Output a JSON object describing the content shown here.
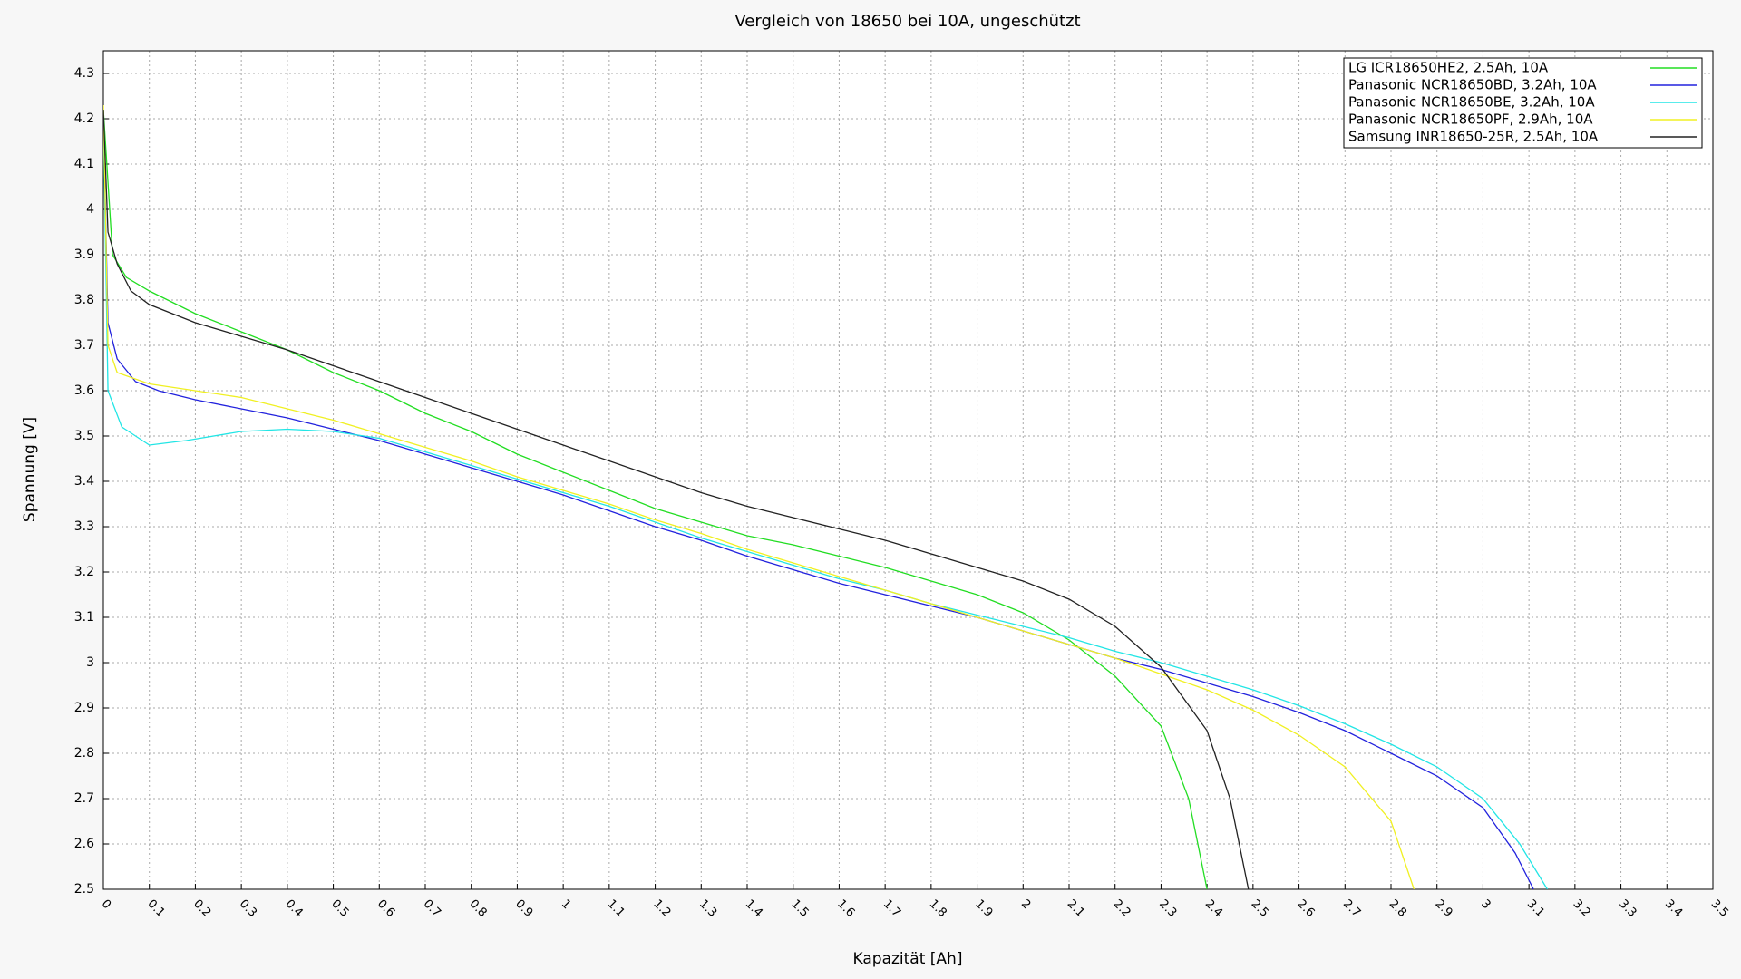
{
  "chart_data": {
    "type": "line",
    "title": "Vergleich von 18650 bei 10A, ungeschützt",
    "xlabel": "Kapazität [Ah]",
    "ylabel": "Spannung [V]",
    "xlim": [
      0,
      3.5
    ],
    "ylim": [
      2.5,
      4.35
    ],
    "xticks": [
      0,
      0.1,
      0.2,
      0.3,
      0.4,
      0.5,
      0.6,
      0.7,
      0.8,
      0.9,
      1,
      1.1,
      1.2,
      1.3,
      1.4,
      1.5,
      1.6,
      1.7,
      1.8,
      1.9,
      2,
      2.1,
      2.2,
      2.3,
      2.4,
      2.5,
      2.6,
      2.7,
      2.8,
      2.9,
      3,
      3.1,
      3.2,
      3.3,
      3.4,
      3.5
    ],
    "yticks": [
      2.5,
      2.6,
      2.7,
      2.8,
      2.9,
      3,
      3.1,
      3.2,
      3.3,
      3.4,
      3.5,
      3.6,
      3.7,
      3.8,
      3.9,
      4,
      4.1,
      4.2,
      4.3
    ],
    "grid": true,
    "legend": "upper right",
    "series": [
      {
        "name": "LG ICR18650HE2, 2.5Ah, 10A",
        "color": "#22dd22",
        "x": [
          0,
          0.02,
          0.05,
          0.1,
          0.2,
          0.3,
          0.4,
          0.5,
          0.6,
          0.7,
          0.8,
          0.9,
          1,
          1.1,
          1.2,
          1.3,
          1.4,
          1.5,
          1.6,
          1.7,
          1.8,
          1.9,
          2,
          2.1,
          2.2,
          2.3,
          2.36,
          2.4
        ],
        "values": [
          4.22,
          3.9,
          3.85,
          3.82,
          3.77,
          3.73,
          3.69,
          3.64,
          3.6,
          3.55,
          3.51,
          3.46,
          3.42,
          3.38,
          3.34,
          3.31,
          3.28,
          3.26,
          3.235,
          3.21,
          3.18,
          3.15,
          3.11,
          3.05,
          2.97,
          2.86,
          2.7,
          2.5
        ]
      },
      {
        "name": "Panasonic NCR18650BD, 3.2Ah, 10A",
        "color": "#2222dd",
        "x": [
          0,
          0.01,
          0.03,
          0.07,
          0.12,
          0.2,
          0.3,
          0.4,
          0.5,
          0.6,
          0.7,
          0.8,
          0.9,
          1,
          1.1,
          1.2,
          1.3,
          1.4,
          1.5,
          1.6,
          1.7,
          1.8,
          1.9,
          2,
          2.1,
          2.2,
          2.3,
          2.4,
          2.5,
          2.6,
          2.7,
          2.8,
          2.9,
          3,
          3.07,
          3.11
        ],
        "values": [
          4.2,
          3.75,
          3.67,
          3.62,
          3.6,
          3.58,
          3.56,
          3.54,
          3.515,
          3.49,
          3.46,
          3.43,
          3.4,
          3.37,
          3.335,
          3.3,
          3.27,
          3.235,
          3.205,
          3.175,
          3.15,
          3.125,
          3.1,
          3.07,
          3.04,
          3.01,
          2.985,
          2.955,
          2.925,
          2.89,
          2.85,
          2.8,
          2.75,
          2.68,
          2.58,
          2.5
        ]
      },
      {
        "name": "Panasonic NCR18650BE, 3.2Ah, 10A",
        "color": "#22e5e5",
        "x": [
          0,
          0.01,
          0.04,
          0.1,
          0.18,
          0.3,
          0.4,
          0.5,
          0.6,
          0.7,
          0.8,
          0.9,
          1,
          1.1,
          1.2,
          1.3,
          1.4,
          1.5,
          1.6,
          1.7,
          1.8,
          1.9,
          2,
          2.1,
          2.2,
          2.3,
          2.4,
          2.5,
          2.6,
          2.7,
          2.8,
          2.9,
          3,
          3.08,
          3.14
        ],
        "values": [
          4.2,
          3.6,
          3.52,
          3.48,
          3.49,
          3.51,
          3.515,
          3.51,
          3.495,
          3.465,
          3.435,
          3.405,
          3.375,
          3.345,
          3.31,
          3.275,
          3.245,
          3.215,
          3.185,
          3.16,
          3.13,
          3.105,
          3.08,
          3.055,
          3.025,
          3,
          2.97,
          2.94,
          2.905,
          2.865,
          2.82,
          2.77,
          2.7,
          2.6,
          2.5
        ]
      },
      {
        "name": "Panasonic NCR18650PF, 2.9Ah, 10A",
        "color": "#f0f022",
        "x": [
          0,
          0.01,
          0.03,
          0.1,
          0.2,
          0.3,
          0.4,
          0.5,
          0.6,
          0.7,
          0.8,
          0.9,
          1,
          1.1,
          1.2,
          1.3,
          1.4,
          1.5,
          1.6,
          1.7,
          1.8,
          1.9,
          2,
          2.1,
          2.2,
          2.3,
          2.4,
          2.5,
          2.6,
          2.7,
          2.8,
          2.85
        ],
        "values": [
          4.23,
          3.7,
          3.64,
          3.615,
          3.6,
          3.585,
          3.56,
          3.535,
          3.505,
          3.475,
          3.445,
          3.41,
          3.38,
          3.35,
          3.315,
          3.285,
          3.25,
          3.22,
          3.19,
          3.16,
          3.13,
          3.1,
          3.07,
          3.04,
          3.01,
          2.975,
          2.94,
          2.895,
          2.84,
          2.77,
          2.65,
          2.5
        ]
      },
      {
        "name": "Samsung INR18650-25R, 2.5Ah, 10A",
        "color": "#222222",
        "x": [
          0,
          0.01,
          0.03,
          0.06,
          0.1,
          0.2,
          0.3,
          0.4,
          0.5,
          0.6,
          0.7,
          0.8,
          0.9,
          1,
          1.1,
          1.2,
          1.3,
          1.4,
          1.5,
          1.6,
          1.7,
          1.8,
          1.9,
          2,
          2.1,
          2.2,
          2.3,
          2.4,
          2.45,
          2.49
        ],
        "values": [
          4.22,
          3.95,
          3.88,
          3.82,
          3.79,
          3.75,
          3.72,
          3.69,
          3.655,
          3.62,
          3.585,
          3.55,
          3.515,
          3.48,
          3.445,
          3.41,
          3.375,
          3.345,
          3.32,
          3.295,
          3.27,
          3.24,
          3.21,
          3.18,
          3.14,
          3.08,
          2.99,
          2.85,
          2.7,
          2.5
        ]
      }
    ]
  }
}
